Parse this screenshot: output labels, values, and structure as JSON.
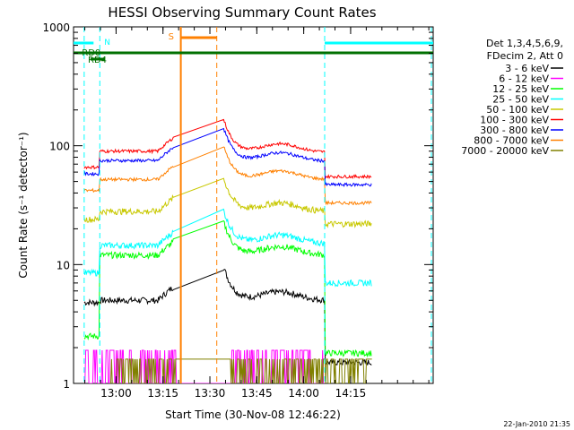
{
  "chart_data": {
    "type": "line",
    "title": "HESSI Observing Summary Count Rates",
    "xlabel": "Start Time (30-Nov-08 12:46:22)",
    "ylabel": "Count Rate (s⁻¹ detector⁻¹)",
    "yscale": "log",
    "ylim": [
      1,
      1000
    ],
    "xlim_minutes": [
      0,
      115
    ],
    "x_ticks": [
      {
        "label": "13:00",
        "min": 13.6
      },
      {
        "label": "13:15",
        "min": 28.6
      },
      {
        "label": "13:30",
        "min": 43.6
      },
      {
        "label": "13:45",
        "min": 58.6
      },
      {
        "label": "14:00",
        "min": 73.6
      },
      {
        "label": "14:15",
        "min": 88.6
      }
    ],
    "y_ticks": [
      {
        "label": "1",
        "value": 1
      },
      {
        "label": "10",
        "value": 10
      },
      {
        "label": "100",
        "value": 100
      },
      {
        "label": "1000",
        "value": 1000
      }
    ],
    "legend_header": [
      "Det 1,3,4,5,6,9,",
      "FDecim 2, Att 0"
    ],
    "legend_position": "right",
    "series": [
      {
        "name": "3 - 6 keV",
        "color": "#000000",
        "pre": 4.8,
        "early": 5.0,
        "post": 5.0,
        "tail": 1.5
      },
      {
        "name": "6 - 12 keV",
        "color": "#ff00ff",
        "pre": 1.0,
        "early": 12.0,
        "post": 13.0,
        "tail": 1.0
      },
      {
        "name": "12 - 25 keV",
        "color": "#00ff00",
        "pre": 2.5,
        "early": 12.0,
        "post": 12.0,
        "tail": 1.8
      },
      {
        "name": "25 - 50 keV",
        "color": "#00ffff",
        "pre": 8.5,
        "early": 14.5,
        "post": 15.0,
        "tail": 7.0
      },
      {
        "name": "50 - 100 keV",
        "color": "#c8c800",
        "pre": 24.0,
        "early": 28.0,
        "post": 28.0,
        "tail": 22.0
      },
      {
        "name": "100 - 300 keV",
        "color": "#ff0000",
        "pre": 66.0,
        "early": 90.0,
        "post": 88.0,
        "tail": 55.0
      },
      {
        "name": "300 - 800 keV",
        "color": "#0000ff",
        "pre": 58.0,
        "early": 75.0,
        "post": 74.0,
        "tail": 47.0
      },
      {
        "name": "800 - 7000 keV",
        "color": "#ff8000",
        "pre": 42.0,
        "early": 52.0,
        "post": 52.0,
        "tail": 33.0
      },
      {
        "name": "7000 - 20000 keV",
        "color": "#808000",
        "pre": 1.0,
        "early": 1.0,
        "post": 1.0,
        "tail": 1.0
      }
    ],
    "flags": [
      {
        "label": "N",
        "color": "#00ffff"
      },
      {
        "label": "S",
        "color": "#ff8000"
      },
      {
        "label": "RD0",
        "color": "#007000"
      },
      {
        "label": "RD4",
        "color": "#007000"
      }
    ],
    "footer_date": "22-Jan-2010 21:35"
  }
}
